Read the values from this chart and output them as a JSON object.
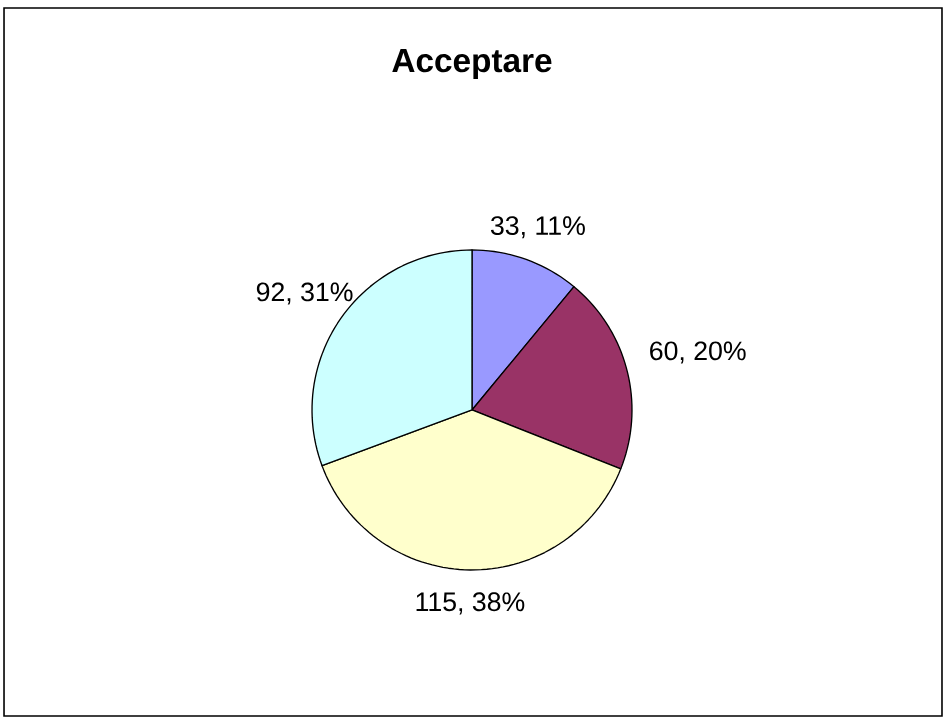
{
  "chart_data": {
    "type": "pie",
    "title": "Acceptare",
    "categories": [
      null,
      null,
      null,
      null
    ],
    "values": [
      33,
      60,
      115,
      92
    ],
    "colors": [
      "#9999ff",
      "#993366",
      "#ffffcc",
      "#ccffff"
    ],
    "value_labels": [
      "33, 11%",
      "60, 20%",
      "115, 38%",
      "92, 31%"
    ]
  }
}
